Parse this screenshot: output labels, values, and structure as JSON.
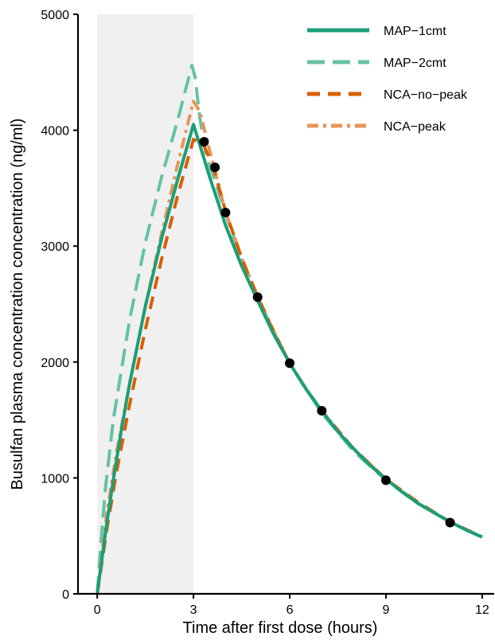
{
  "chart_data": {
    "type": "line",
    "xlabel": "Time after first dose (hours)",
    "ylabel": "Busulfan plasma concentration concentration (ng/ml)",
    "xlim": [
      -0.6,
      12.4
    ],
    "ylim": [
      0,
      5000
    ],
    "xticks": [
      0,
      3,
      6,
      9,
      12
    ],
    "yticks": [
      0,
      1000,
      2000,
      3000,
      4000,
      5000
    ],
    "infusion_band": {
      "x_start": 0,
      "x_end": 3,
      "color": "#f0f0f0"
    },
    "legend_position": "top-right",
    "grid": false,
    "series": [
      {
        "name": "MAP−1cmt",
        "color": "#1b9e77",
        "style": "solid",
        "x": [
          0,
          0.25,
          0.5,
          0.75,
          1.0,
          1.5,
          2.0,
          2.5,
          3.0,
          3.5,
          4.0,
          4.5,
          5.0,
          5.5,
          6.0,
          6.5,
          7.0,
          7.5,
          8.0,
          8.5,
          9.0,
          9.5,
          10.0,
          10.5,
          11.0,
          11.5,
          12.0
        ],
        "y": [
          0,
          520,
          980,
          1410,
          1800,
          2480,
          3060,
          3570,
          4050,
          3600,
          3180,
          2830,
          2530,
          2240,
          1990,
          1770,
          1580,
          1400,
          1250,
          1110,
          990,
          880,
          780,
          700,
          620,
          550,
          490
        ]
      },
      {
        "name": "MAP−2cmt",
        "color": "#66c2a5",
        "style": "longdash",
        "x": [
          0,
          0.1,
          0.25,
          0.5,
          1.0,
          1.5,
          2.0,
          2.5,
          2.95,
          3.05,
          3.2,
          3.4,
          3.7,
          4.0,
          4.5,
          5.0,
          5.5,
          6.0,
          7.0,
          8.0,
          9.0,
          10.0,
          11.0,
          12.0
        ],
        "y": [
          0,
          380,
          900,
          1500,
          2350,
          3030,
          3590,
          4080,
          4560,
          4460,
          4100,
          3780,
          3540,
          3280,
          2890,
          2560,
          2260,
          1990,
          1560,
          1230,
          980,
          780,
          620,
          490
        ]
      },
      {
        "name": "NCA−no−peak",
        "color": "#d95f02",
        "style": "dash",
        "x": [
          0,
          0.3,
          0.6,
          1.0,
          1.5,
          2.0,
          2.5,
          3.0,
          3.3,
          3.6,
          4.0,
          4.5,
          5.0,
          5.5,
          6.0,
          6.5,
          7.0,
          7.5,
          8.0,
          9.0,
          10.0,
          11.0,
          12.0
        ],
        "y": [
          0,
          560,
          1050,
          1620,
          2280,
          2880,
          3430,
          3920,
          3880,
          3700,
          3300,
          2900,
          2560,
          2260,
          1990,
          1770,
          1580,
          1410,
          1250,
          990,
          790,
          620,
          490
        ]
      },
      {
        "name": "NCA−peak",
        "color": "#e8955a",
        "style": "dashdot",
        "x": [
          0,
          0.3,
          0.6,
          1.0,
          1.5,
          2.0,
          2.5,
          3.0,
          3.2,
          3.5,
          4.0,
          4.5,
          5.0,
          5.5,
          6.0,
          6.5,
          7.0,
          8.0,
          9.0,
          10.0,
          11.0,
          12.0
        ],
        "y": [
          0,
          700,
          1220,
          1800,
          2480,
          3100,
          3700,
          4250,
          4160,
          3830,
          3300,
          2900,
          2570,
          2270,
          1990,
          1770,
          1580,
          1250,
          990,
          780,
          620,
          490
        ]
      }
    ],
    "observations": {
      "color": "#000000",
      "x": [
        3.33,
        3.67,
        4.0,
        5.0,
        6.0,
        7.0,
        9.0,
        11.0
      ],
      "y": [
        3900,
        3680,
        3290,
        2560,
        1990,
        1580,
        980,
        615
      ]
    }
  }
}
